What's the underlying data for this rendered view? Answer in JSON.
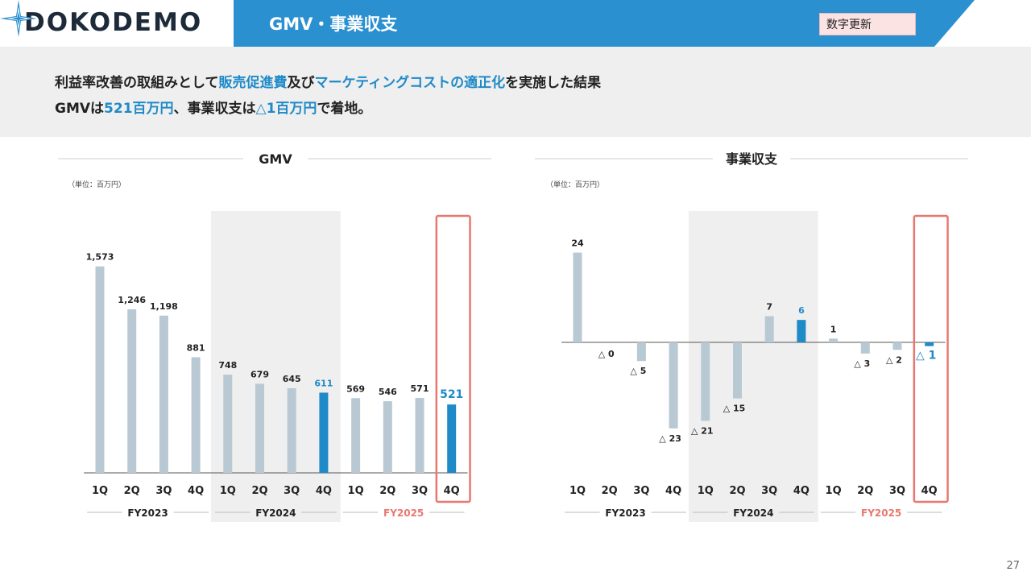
{
  "header": {
    "logo": "DOKODEMO",
    "title": "GMV・事業収支",
    "badge": "数字更新"
  },
  "summary": {
    "line1": [
      {
        "text": "利益率改善の取組みとして",
        "hl": false
      },
      {
        "text": "販売促進費",
        "hl": true
      },
      {
        "text": "及び",
        "hl": false
      },
      {
        "text": "マーケティングコストの適正化",
        "hl": true
      },
      {
        "text": "を実施した結果",
        "hl": false
      }
    ],
    "line2": [
      {
        "text": "GMVは",
        "hl": false
      },
      {
        "text": "521百万円",
        "hl": true
      },
      {
        "text": "、事業収支は",
        "hl": false
      },
      {
        "text": "△1百万円",
        "hl": true
      },
      {
        "text": "で着地。",
        "hl": false
      }
    ]
  },
  "page_number": "27",
  "colors": {
    "bar": "#b8c9d3",
    "highlight": "#1f8ac8",
    "accent_box": "#e8786f",
    "fy2025": "#e8786f",
    "band": "#efefef"
  },
  "chart_data": [
    {
      "type": "bar",
      "title": "GMV",
      "unit": "（単位：百万円）",
      "categories": [
        "1Q",
        "2Q",
        "3Q",
        "4Q",
        "1Q",
        "2Q",
        "3Q",
        "4Q",
        "1Q",
        "2Q",
        "3Q",
        "4Q"
      ],
      "values": [
        1573,
        1246,
        1198,
        881,
        748,
        679,
        645,
        611,
        569,
        546,
        571,
        521
      ],
      "labels": [
        "1,573",
        "1,246",
        "1,198",
        "881",
        "748",
        "679",
        "645",
        "611",
        "569",
        "546",
        "571",
        "521"
      ],
      "highlight_indices": [
        7,
        11
      ],
      "groups": [
        {
          "label": "FY2023",
          "start": 0,
          "end": 3
        },
        {
          "label": "FY2024",
          "start": 4,
          "end": 7
        },
        {
          "label": "FY2025",
          "start": 8,
          "end": 11
        }
      ],
      "ylim": [
        0,
        1700
      ]
    },
    {
      "type": "bar",
      "title": "事業収支",
      "unit": "（単位：百万円）",
      "categories": [
        "1Q",
        "2Q",
        "3Q",
        "4Q",
        "1Q",
        "2Q",
        "3Q",
        "4Q",
        "1Q",
        "2Q",
        "3Q",
        "4Q"
      ],
      "values": [
        24,
        0,
        -5,
        -23,
        -21,
        -15,
        7,
        6,
        1,
        -3,
        -2,
        -1
      ],
      "labels": [
        "24",
        "△ 0",
        "△ 5",
        "△ 23",
        "△ 21",
        "△ 15",
        "7",
        "6",
        "1",
        "△ 3",
        "△ 2",
        "△ 1"
      ],
      "highlight_indices": [
        7,
        11
      ],
      "groups": [
        {
          "label": "FY2023",
          "start": 0,
          "end": 3
        },
        {
          "label": "FY2024",
          "start": 4,
          "end": 7
        },
        {
          "label": "FY2025",
          "start": 8,
          "end": 11
        }
      ],
      "ylim": [
        -30,
        28
      ]
    }
  ]
}
